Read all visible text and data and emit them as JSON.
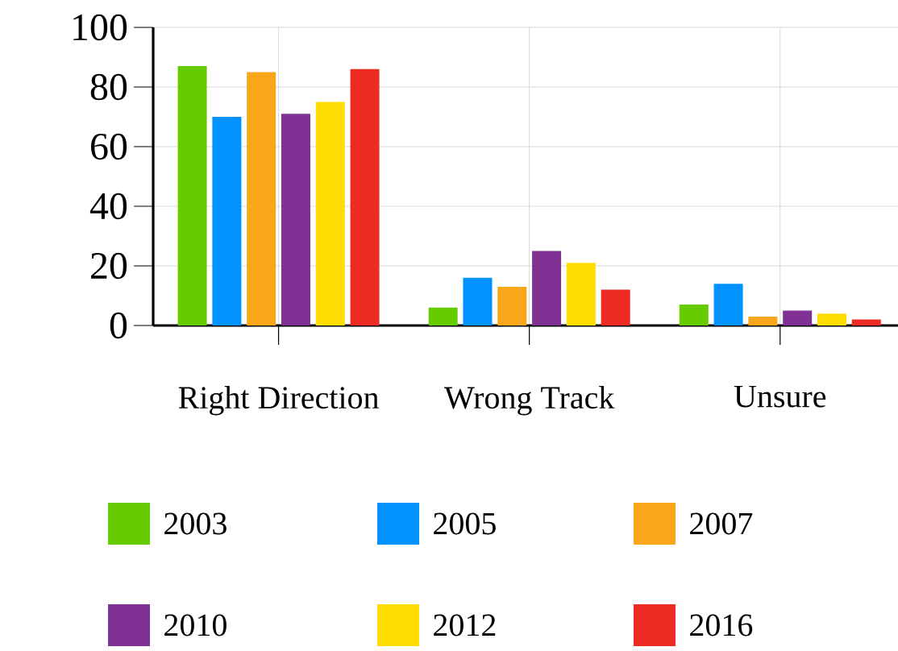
{
  "chart_data": {
    "type": "bar",
    "categories": [
      "Right Direction",
      "Wrong Track",
      "Unsure"
    ],
    "series": [
      {
        "name": "2003",
        "color": "#66cc00",
        "values": [
          87,
          6,
          7
        ]
      },
      {
        "name": "2005",
        "color": "#0092ff",
        "values": [
          70,
          16,
          14
        ]
      },
      {
        "name": "2007",
        "color": "#faa61a",
        "values": [
          85,
          13,
          3
        ]
      },
      {
        "name": "2010",
        "color": "#7f3194",
        "values": [
          71,
          25,
          5
        ]
      },
      {
        "name": "2012",
        "color": "#ffdd00",
        "values": [
          75,
          21,
          4
        ]
      },
      {
        "name": "2016",
        "color": "#ee2a24",
        "values": [
          86,
          12,
          2
        ]
      }
    ],
    "ylim": [
      0,
      100
    ],
    "yticks": [
      0,
      20,
      40,
      60,
      80,
      100
    ],
    "grid": true,
    "legend": "bottom"
  }
}
